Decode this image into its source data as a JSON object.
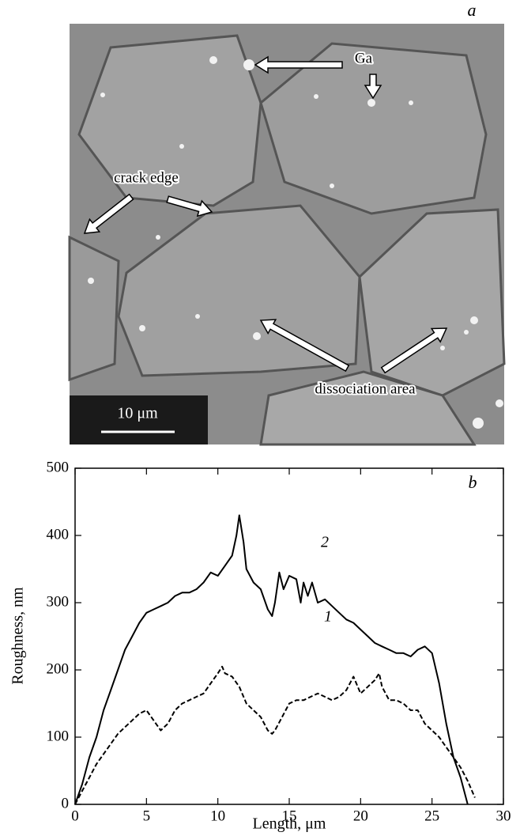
{
  "image_panel": {
    "label": "a",
    "annotations": [
      "Ga",
      "crack edge",
      "dissociation area"
    ],
    "scale_bar": "10 μm"
  },
  "chart_data": {
    "type": "line",
    "panel_label": "b",
    "x_label": "Length, μm",
    "y_label": "Roughness, nm",
    "xlim": [
      0,
      30
    ],
    "xticks": [
      0,
      5,
      10,
      15,
      20,
      25,
      30
    ],
    "ylim": [
      0,
      500
    ],
    "yticks": [
      0,
      100,
      200,
      300,
      400,
      500
    ],
    "series": [
      {
        "name": "2",
        "color": "#000000",
        "dash": false,
        "x": [
          0,
          0.5,
          1,
          1.5,
          2,
          2.5,
          3,
          3.5,
          4,
          4.5,
          5,
          5.5,
          6,
          6.5,
          7,
          7.5,
          8,
          8.5,
          9,
          9.5,
          10,
          10.5,
          11,
          11.3,
          11.5,
          11.8,
          12,
          12.5,
          13,
          13.5,
          13.8,
          14,
          14.3,
          14.6,
          15,
          15.5,
          15.8,
          16,
          16.3,
          16.6,
          17,
          17.5,
          18,
          18.5,
          19,
          19.5,
          20,
          20.5,
          21,
          21.5,
          22,
          22.5,
          23,
          23.5,
          24,
          24.5,
          25,
          25.5,
          26,
          26.5,
          27,
          27.5
        ],
        "values": [
          0,
          30,
          70,
          100,
          140,
          170,
          200,
          230,
          250,
          270,
          285,
          290,
          295,
          300,
          310,
          315,
          315,
          320,
          330,
          345,
          340,
          355,
          370,
          400,
          430,
          390,
          350,
          330,
          320,
          290,
          280,
          300,
          345,
          320,
          340,
          335,
          300,
          330,
          310,
          330,
          300,
          305,
          295,
          285,
          275,
          270,
          260,
          250,
          240,
          235,
          230,
          225,
          225,
          220,
          230,
          235,
          225,
          180,
          120,
          70,
          40,
          0
        ]
      },
      {
        "name": "1",
        "color": "#000000",
        "dash": true,
        "x": [
          0,
          0.5,
          1,
          1.5,
          2,
          2.5,
          3,
          3.5,
          4,
          4.5,
          5,
          5.5,
          6,
          6.5,
          7,
          7.5,
          8,
          8.5,
          9,
          9.5,
          10,
          10.3,
          10.5,
          11,
          11.5,
          12,
          12.5,
          13,
          13.5,
          13.8,
          14,
          14.5,
          15,
          15.5,
          16,
          16.5,
          17,
          17.5,
          18,
          18.5,
          19,
          19.5,
          20,
          20.5,
          21,
          21.3,
          21.5,
          22,
          22.5,
          23,
          23.5,
          24,
          24.5,
          25,
          25.5,
          26,
          26.5,
          27,
          27.5,
          28
        ],
        "values": [
          0,
          20,
          40,
          60,
          75,
          90,
          105,
          115,
          125,
          135,
          140,
          125,
          110,
          120,
          140,
          150,
          155,
          160,
          165,
          180,
          195,
          205,
          195,
          190,
          175,
          150,
          140,
          130,
          110,
          105,
          110,
          130,
          150,
          155,
          155,
          160,
          165,
          160,
          155,
          160,
          170,
          190,
          165,
          175,
          185,
          195,
          175,
          155,
          155,
          150,
          140,
          140,
          120,
          110,
          100,
          85,
          70,
          55,
          35,
          10
        ]
      }
    ]
  }
}
